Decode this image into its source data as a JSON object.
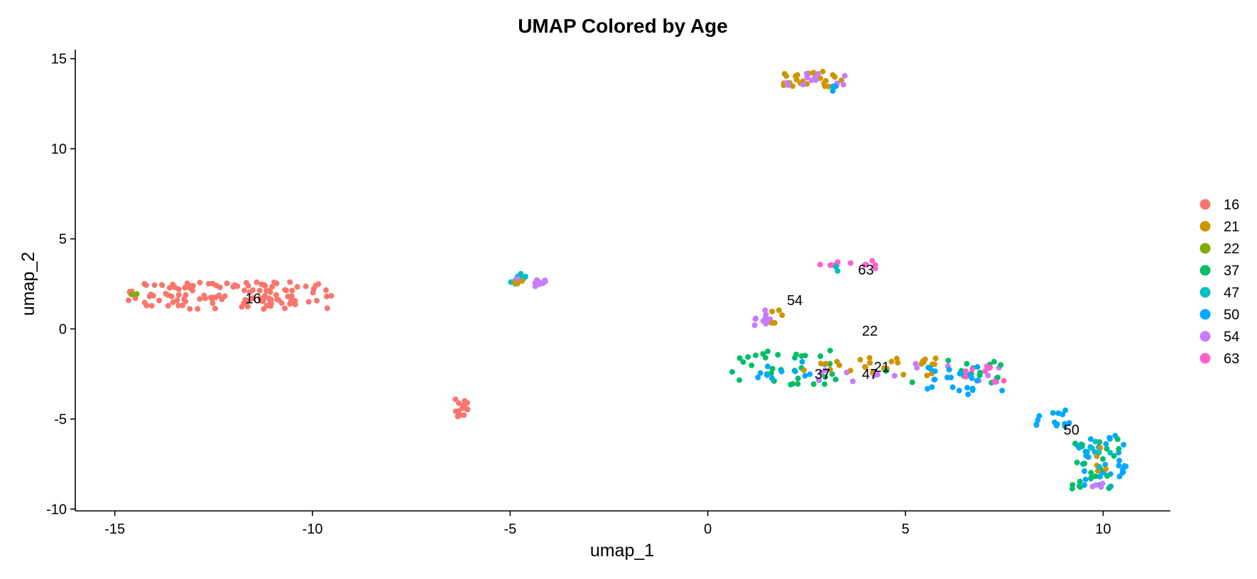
{
  "chart_data": {
    "type": "scatter",
    "title": "UMAP Colored by Age",
    "xlabel": "umap_1",
    "ylabel": "umap_2",
    "xlim": [
      -16,
      11.7
    ],
    "ylim": [
      -10.1,
      15.5
    ],
    "xticks": [
      -15,
      -10,
      -5,
      0,
      5,
      10
    ],
    "yticks": [
      -10,
      -5,
      0,
      5,
      10,
      15
    ],
    "grid": false,
    "legend_position": "right",
    "series": [
      {
        "name": "16",
        "color": "#F8766D"
      },
      {
        "name": "21",
        "color": "#CD9600"
      },
      {
        "name": "22",
        "color": "#7CAE00"
      },
      {
        "name": "37",
        "color": "#00BE67"
      },
      {
        "name": "47",
        "color": "#00BFC4"
      },
      {
        "name": "50",
        "color": "#00A9FF"
      },
      {
        "name": "54",
        "color": "#C77CFF"
      },
      {
        "name": "63",
        "color": "#FF61CC"
      }
    ],
    "cluster_regions": [
      {
        "series": "16",
        "x": [
          -14.7,
          -9.5
        ],
        "y": [
          1.1,
          2.6
        ],
        "n": 130
      },
      {
        "series": "22",
        "x": [
          -14.6,
          -14.4
        ],
        "y": [
          1.9,
          2.1
        ],
        "n": 2
      },
      {
        "series": "16",
        "x": [
          -6.4,
          -6.0
        ],
        "y": [
          -4.9,
          -3.9
        ],
        "n": 16
      },
      {
        "series": "47",
        "x": [
          -5.0,
          -4.6
        ],
        "y": [
          2.5,
          3.1
        ],
        "n": 10
      },
      {
        "series": "54",
        "x": [
          -4.9,
          -4.1
        ],
        "y": [
          2.3,
          2.8
        ],
        "n": 10
      },
      {
        "series": "21",
        "x": [
          -4.9,
          -4.7
        ],
        "y": [
          2.5,
          2.9
        ],
        "n": 3
      },
      {
        "series": "21",
        "x": [
          1.9,
          3.5
        ],
        "y": [
          13.4,
          14.3
        ],
        "n": 25
      },
      {
        "series": "54",
        "x": [
          1.9,
          3.6
        ],
        "y": [
          13.5,
          14.2
        ],
        "n": 12
      },
      {
        "series": "50",
        "x": [
          3.0,
          3.3
        ],
        "y": [
          13.2,
          13.5
        ],
        "n": 3
      },
      {
        "series": "63",
        "x": [
          2.6,
          4.3
        ],
        "y": [
          3.3,
          3.8
        ],
        "n": 12
      },
      {
        "series": "47",
        "x": [
          3.2,
          3.5
        ],
        "y": [
          3.2,
          3.5
        ],
        "n": 3
      },
      {
        "series": "54",
        "x": [
          1.1,
          1.6
        ],
        "y": [
          0.2,
          1.1
        ],
        "n": 12
      },
      {
        "series": "21",
        "x": [
          1.4,
          1.9
        ],
        "y": [
          0.3,
          1.2
        ],
        "n": 5
      },
      {
        "series": "37",
        "x": [
          0.6,
          3.4
        ],
        "y": [
          -3.1,
          -1.2
        ],
        "n": 35
      },
      {
        "series": "50",
        "x": [
          0.9,
          3.1
        ],
        "y": [
          -2.9,
          -1.6
        ],
        "n": 12
      },
      {
        "series": "21",
        "x": [
          2.4,
          5.8
        ],
        "y": [
          -2.6,
          -1.6
        ],
        "n": 28
      },
      {
        "series": "54",
        "x": [
          2.4,
          7.7
        ],
        "y": [
          -3.0,
          -1.9
        ],
        "n": 18
      },
      {
        "series": "37",
        "x": [
          4.5,
          7.5
        ],
        "y": [
          -3.0,
          -1.6
        ],
        "n": 15
      },
      {
        "series": "50",
        "x": [
          5.5,
          7.7
        ],
        "y": [
          -3.7,
          -2.0
        ],
        "n": 22
      },
      {
        "series": "63",
        "x": [
          6.5,
          7.6
        ],
        "y": [
          -3.0,
          -1.9
        ],
        "n": 8
      },
      {
        "series": "50",
        "x": [
          8.3,
          9.3
        ],
        "y": [
          -5.4,
          -4.4
        ],
        "n": 14
      },
      {
        "series": "50",
        "x": [
          9.3,
          10.6
        ],
        "y": [
          -8.8,
          -5.8
        ],
        "n": 40
      },
      {
        "series": "37",
        "x": [
          9.2,
          10.4
        ],
        "y": [
          -9.0,
          -6.0
        ],
        "n": 20
      },
      {
        "series": "21",
        "x": [
          9.5,
          10.1
        ],
        "y": [
          -8.0,
          -6.5
        ],
        "n": 5
      },
      {
        "series": "54",
        "x": [
          9.5,
          10.0
        ],
        "y": [
          -8.9,
          -8.5
        ],
        "n": 4
      },
      {
        "series": "47",
        "x": [
          9.7,
          10.2
        ],
        "y": [
          -8.0,
          -6.2
        ],
        "n": 5
      }
    ],
    "annotations": [
      {
        "text": "16",
        "x": -11.5,
        "y": 1.7
      },
      {
        "text": "63",
        "x": 4.0,
        "y": 3.3
      },
      {
        "text": "54",
        "x": 2.2,
        "y": 1.6
      },
      {
        "text": "22",
        "x": 4.1,
        "y": -0.1
      },
      {
        "text": "21",
        "x": 4.4,
        "y": -2.1
      },
      {
        "text": "37",
        "x": 2.9,
        "y": -2.5
      },
      {
        "text": "47",
        "x": 4.1,
        "y": -2.5
      },
      {
        "text": "50",
        "x": 9.2,
        "y": -5.6
      }
    ]
  }
}
